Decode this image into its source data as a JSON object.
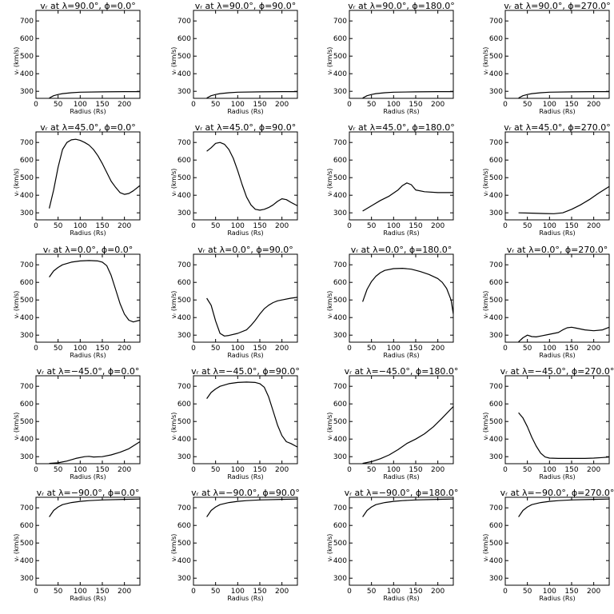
{
  "chart_data": {
    "type": "line",
    "xlabel": "Radius (Rs)",
    "ylabel": "v<sub>r</sub> (km/s)",
    "ylabel_text": "vᵣ (km/s)",
    "xlim": [
      0,
      235
    ],
    "ylim": [
      260,
      760
    ],
    "xticks": [
      0,
      50,
      100,
      150,
      200
    ],
    "yticks": [
      300,
      400,
      500,
      600,
      700
    ],
    "panels": [
      {
        "title": "vᵣ at λ=90.0°, ϕ=0.0°",
        "x": [
          30,
          40,
          50,
          60,
          80,
          100,
          150,
          200,
          235
        ],
        "y": [
          262,
          275,
          282,
          287,
          292,
          295,
          297,
          298,
          298
        ]
      },
      {
        "title": "vᵣ at λ=90.0°, ϕ=90.0°",
        "x": [
          30,
          40,
          50,
          60,
          80,
          100,
          150,
          200,
          235
        ],
        "y": [
          262,
          275,
          282,
          287,
          292,
          295,
          297,
          298,
          298
        ]
      },
      {
        "title": "vᵣ at λ=90.0°, ϕ=180.0°",
        "x": [
          30,
          40,
          50,
          60,
          80,
          100,
          150,
          200,
          235
        ],
        "y": [
          262,
          275,
          282,
          287,
          292,
          295,
          297,
          298,
          298
        ]
      },
      {
        "title": "vᵣ at λ=90.0°, ϕ=270.0°",
        "x": [
          30,
          40,
          50,
          60,
          80,
          100,
          150,
          200,
          235
        ],
        "y": [
          262,
          275,
          282,
          287,
          292,
          295,
          297,
          298,
          298
        ]
      },
      {
        "title": "vᵣ at λ=45.0°, ϕ=0.0°",
        "x": [
          30,
          40,
          50,
          60,
          70,
          80,
          90,
          100,
          110,
          120,
          130,
          140,
          150,
          160,
          170,
          180,
          190,
          200,
          210,
          220,
          235
        ],
        "y": [
          325,
          430,
          560,
          660,
          700,
          715,
          718,
          712,
          700,
          685,
          660,
          625,
          580,
          530,
          480,
          445,
          415,
          405,
          410,
          425,
          455
        ]
      },
      {
        "title": "vᵣ at λ=45.0°, ϕ=90.0°",
        "x": [
          30,
          40,
          50,
          60,
          70,
          80,
          90,
          100,
          110,
          120,
          130,
          140,
          150,
          160,
          170,
          180,
          190,
          200,
          210,
          220,
          235
        ],
        "y": [
          650,
          670,
          695,
          700,
          690,
          660,
          610,
          540,
          460,
          390,
          345,
          320,
          315,
          320,
          330,
          345,
          365,
          380,
          375,
          360,
          340
        ]
      },
      {
        "title": "vᵣ at λ=45.0°, ϕ=180.0°",
        "x": [
          30,
          50,
          70,
          90,
          110,
          120,
          130,
          140,
          150,
          170,
          200,
          235
        ],
        "y": [
          310,
          340,
          370,
          395,
          430,
          455,
          470,
          460,
          430,
          420,
          415,
          415
        ]
      },
      {
        "title": "vᵣ at λ=45.0°, ϕ=270.0°",
        "x": [
          30,
          60,
          90,
          110,
          130,
          150,
          170,
          190,
          210,
          235
        ],
        "y": [
          300,
          298,
          296,
          295,
          300,
          320,
          345,
          375,
          410,
          450
        ]
      },
      {
        "title": "vᵣ at λ=0.0°, ϕ=0.0°",
        "x": [
          30,
          40,
          50,
          60,
          80,
          100,
          120,
          140,
          150,
          160,
          170,
          180,
          190,
          200,
          210,
          220,
          235
        ],
        "y": [
          630,
          665,
          685,
          700,
          715,
          722,
          724,
          722,
          715,
          695,
          640,
          560,
          480,
          420,
          385,
          375,
          385
        ]
      },
      {
        "title": "vᵣ at λ=0.0°, ϕ=90.0°",
        "x": [
          30,
          40,
          50,
          60,
          70,
          80,
          100,
          120,
          130,
          140,
          150,
          160,
          170,
          180,
          190,
          200,
          220,
          235
        ],
        "y": [
          510,
          470,
          380,
          310,
          295,
          298,
          310,
          330,
          355,
          385,
          420,
          450,
          470,
          485,
          495,
          500,
          510,
          515
        ]
      },
      {
        "title": "vᵣ at λ=0.0°, ϕ=180.0°",
        "x": [
          30,
          40,
          50,
          60,
          70,
          80,
          100,
          120,
          140,
          160,
          180,
          200,
          210,
          220,
          230,
          235
        ],
        "y": [
          490,
          560,
          605,
          635,
          655,
          668,
          678,
          680,
          675,
          662,
          645,
          622,
          600,
          565,
          500,
          420
        ]
      },
      {
        "title": "vᵣ at λ=0.0°, ϕ=270.0°",
        "x": [
          30,
          40,
          50,
          60,
          70,
          80,
          100,
          120,
          130,
          140,
          150,
          160,
          180,
          200,
          220,
          235
        ],
        "y": [
          262,
          285,
          300,
          292,
          290,
          295,
          305,
          315,
          330,
          342,
          345,
          340,
          330,
          325,
          330,
          345
        ]
      },
      {
        "title": "vᵣ at λ=−45.0°, ϕ=0.0°",
        "x": [
          30,
          50,
          70,
          90,
          110,
          120,
          130,
          150,
          170,
          190,
          210,
          235
        ],
        "y": [
          262,
          265,
          275,
          290,
          300,
          302,
          298,
          300,
          310,
          325,
          345,
          385
        ]
      },
      {
        "title": "vᵣ at λ=−45.0°, ϕ=90.0°",
        "x": [
          30,
          40,
          50,
          60,
          80,
          100,
          120,
          140,
          150,
          160,
          170,
          180,
          190,
          200,
          210,
          220,
          235
        ],
        "y": [
          630,
          665,
          685,
          700,
          715,
          722,
          724,
          722,
          715,
          695,
          640,
          560,
          480,
          420,
          385,
          375,
          355
        ]
      },
      {
        "title": "vᵣ at λ=−45.0°, ϕ=180.0°",
        "x": [
          30,
          50,
          70,
          90,
          110,
          130,
          150,
          170,
          190,
          210,
          235
        ],
        "y": [
          262,
          272,
          288,
          310,
          340,
          375,
          400,
          430,
          470,
          520,
          585
        ]
      },
      {
        "title": "vᵣ at λ=−45.0°, ϕ=270.0°",
        "x": [
          30,
          40,
          50,
          60,
          70,
          80,
          90,
          100,
          120,
          150,
          180,
          200,
          220,
          235
        ],
        "y": [
          550,
          520,
          470,
          410,
          360,
          320,
          298,
          292,
          290,
          290,
          290,
          292,
          295,
          298
        ]
      },
      {
        "title": "vᵣ at λ=−90.0°, ϕ=0.0°",
        "x": [
          30,
          40,
          50,
          60,
          80,
          100,
          120,
          150,
          200,
          235
        ],
        "y": [
          648,
          685,
          705,
          718,
          730,
          737,
          741,
          745,
          748,
          750
        ]
      },
      {
        "title": "vᵣ at λ=−90.0°, ϕ=90.0°",
        "x": [
          30,
          40,
          50,
          60,
          80,
          100,
          120,
          150,
          200,
          235
        ],
        "y": [
          648,
          685,
          705,
          718,
          730,
          737,
          741,
          745,
          748,
          750
        ]
      },
      {
        "title": "vᵣ at λ=−90.0°, ϕ=180.0°",
        "x": [
          30,
          40,
          50,
          60,
          80,
          100,
          120,
          150,
          200,
          235
        ],
        "y": [
          648,
          685,
          705,
          718,
          730,
          737,
          741,
          745,
          748,
          750
        ]
      },
      {
        "title": "vᵣ at λ=−90.0°, ϕ=270.0°",
        "x": [
          30,
          40,
          50,
          60,
          80,
          100,
          120,
          150,
          200,
          235
        ],
        "y": [
          648,
          685,
          705,
          718,
          730,
          737,
          741,
          745,
          748,
          750
        ]
      }
    ]
  }
}
